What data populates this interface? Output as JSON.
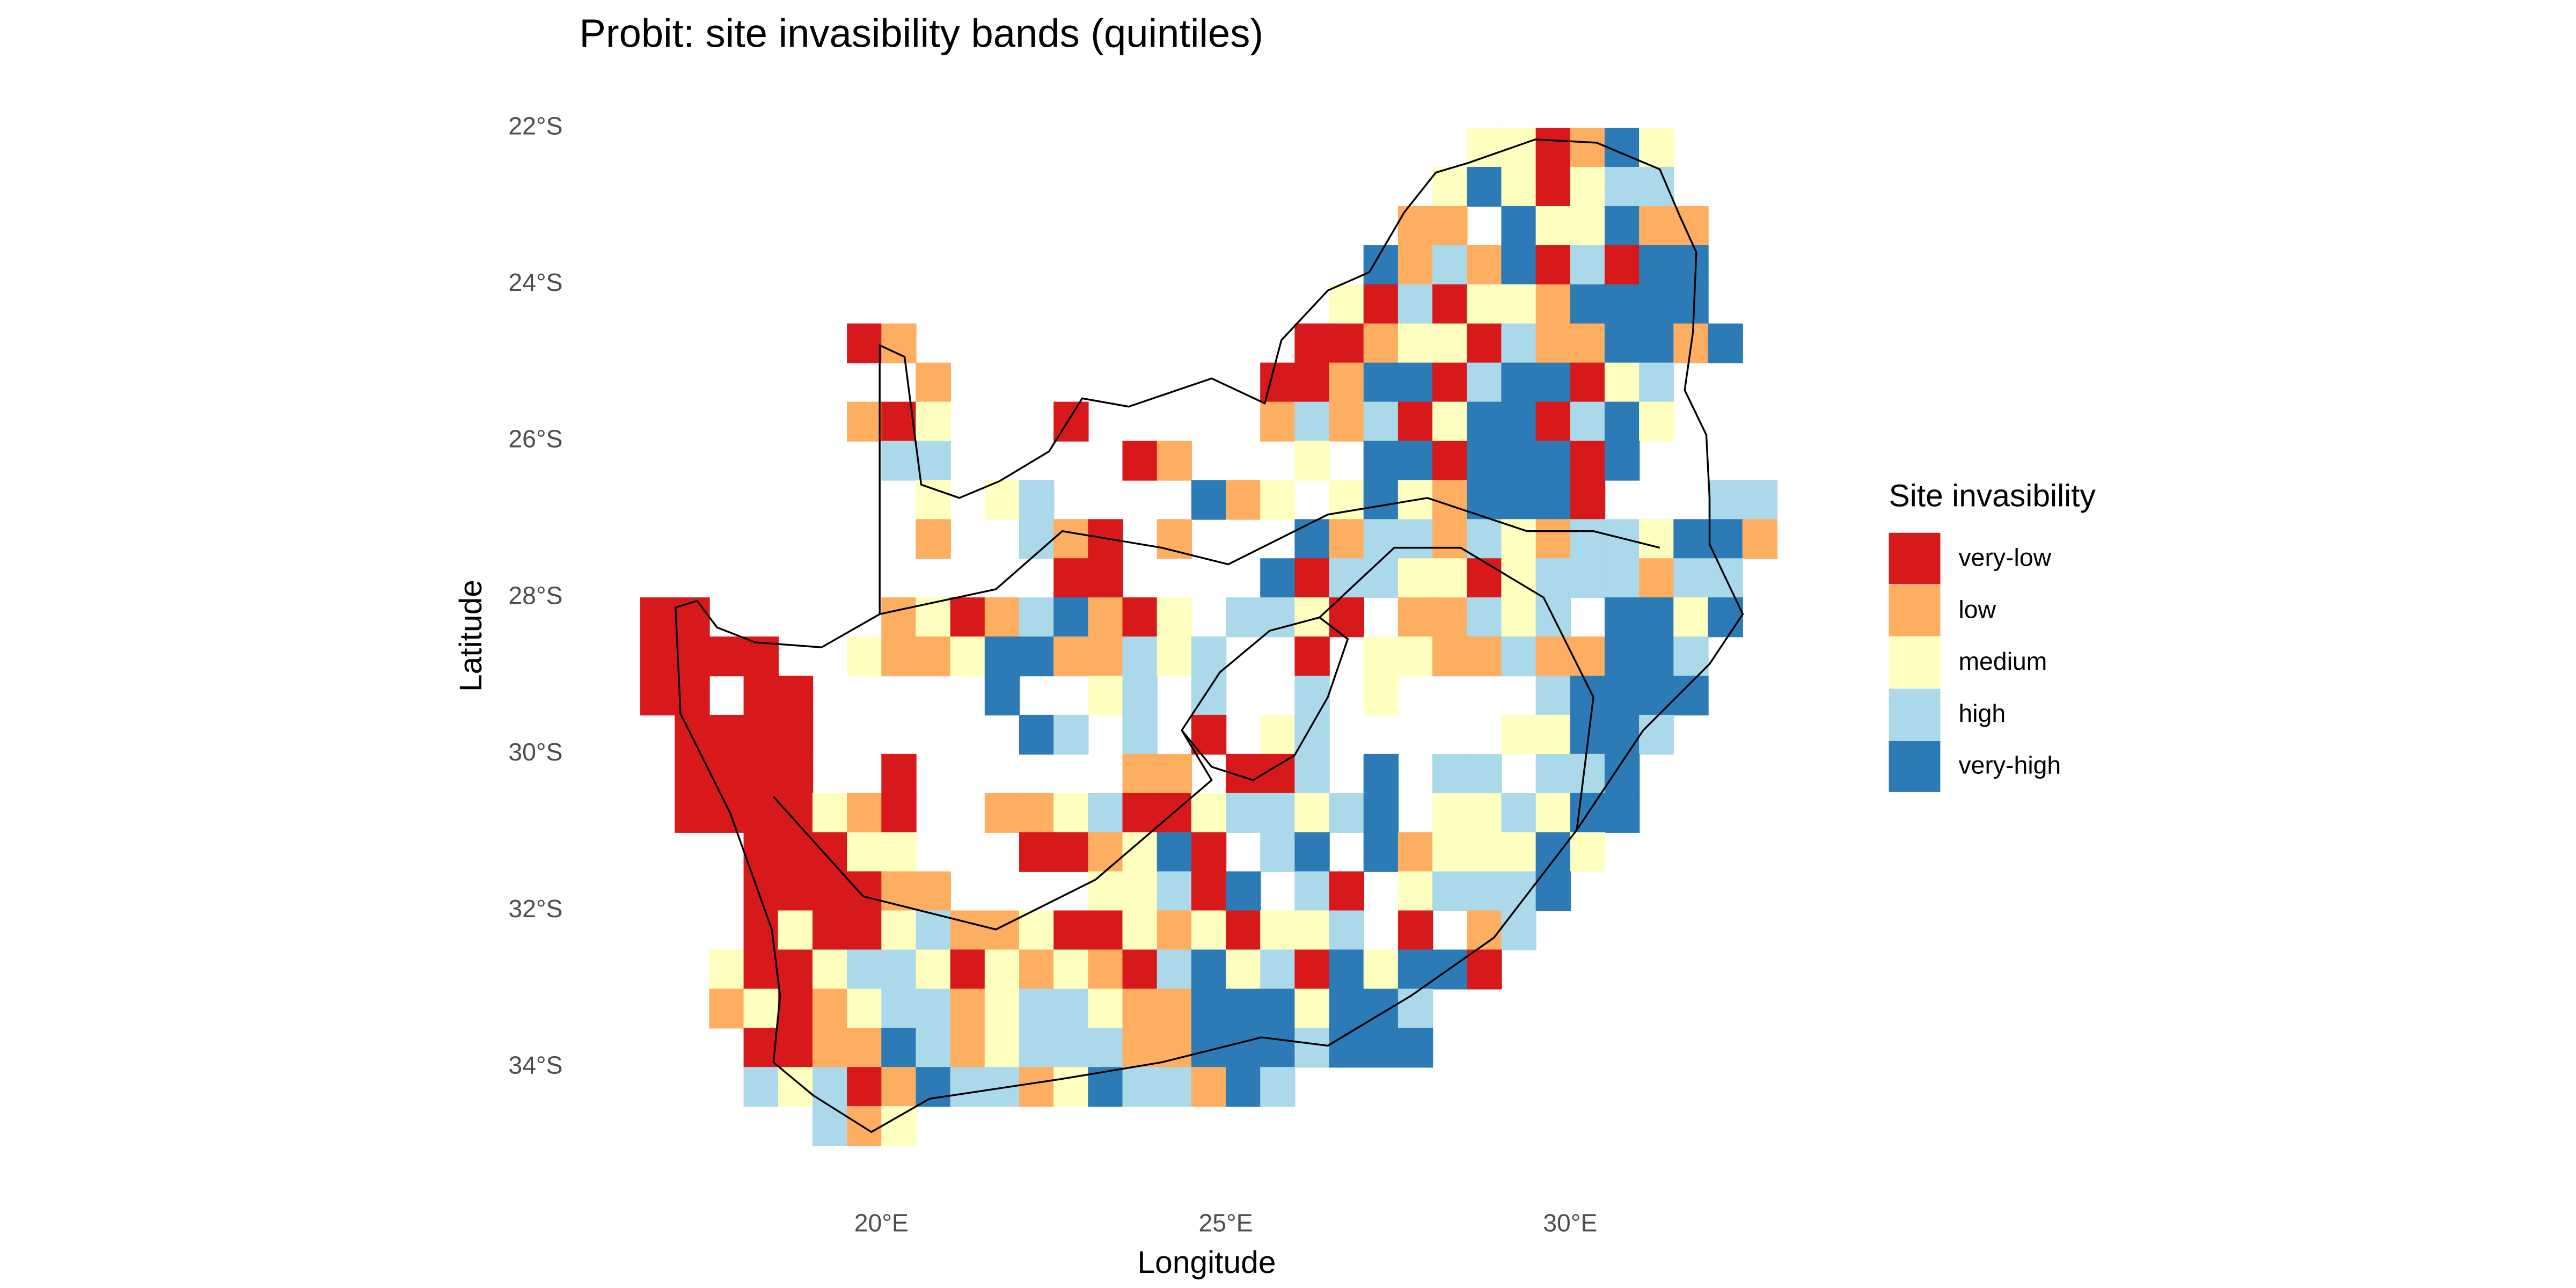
{
  "title": "Probit: site invasibility bands (quintiles)",
  "x_label": "Longitude",
  "y_label": "Latitude",
  "xlim": [
    16.5,
    33
  ],
  "ylim": [
    -35,
    -22
  ],
  "xticks": [
    {
      "value": 20,
      "label": "20°E"
    },
    {
      "value": 25,
      "label": "25°E"
    },
    {
      "value": 30,
      "label": "30°E"
    }
  ],
  "yticks": [
    {
      "value": -22,
      "label": "22°S"
    },
    {
      "value": -24,
      "label": "24°S"
    },
    {
      "value": -26,
      "label": "26°S"
    },
    {
      "value": -28,
      "label": "28°S"
    },
    {
      "value": -30,
      "label": "30°S"
    },
    {
      "value": -32,
      "label": "32°S"
    },
    {
      "value": -34,
      "label": "34°S"
    }
  ],
  "legend": {
    "title": "Site invasibility",
    "labels": [
      "very-low",
      "low",
      "medium",
      "high",
      "very-high"
    ],
    "colors": [
      "#d7191c",
      "#fdae61",
      "#ffffbf",
      "#abd9e9",
      "#2c7bb6"
    ]
  },
  "cells": [
    [
      null,
      null,
      null,
      null,
      null,
      null,
      null,
      null,
      null,
      null,
      null,
      null,
      null,
      null,
      null,
      null,
      null,
      null,
      null,
      null,
      null,
      null,
      null,
      null,
      2,
      2,
      0,
      1,
      4,
      2,
      null,
      null,
      null
    ],
    [
      null,
      null,
      null,
      null,
      null,
      null,
      null,
      null,
      null,
      null,
      null,
      null,
      null,
      null,
      null,
      null,
      null,
      null,
      null,
      null,
      null,
      null,
      null,
      2,
      4,
      2,
      0,
      2,
      3,
      3,
      null,
      null,
      null
    ],
    [
      null,
      null,
      null,
      null,
      null,
      null,
      null,
      null,
      null,
      null,
      null,
      null,
      null,
      null,
      null,
      null,
      null,
      null,
      null,
      null,
      null,
      null,
      1,
      1,
      null,
      4,
      2,
      2,
      4,
      1,
      1,
      null,
      null
    ],
    [
      null,
      null,
      null,
      null,
      null,
      null,
      null,
      null,
      null,
      null,
      null,
      null,
      null,
      null,
      null,
      null,
      null,
      null,
      null,
      null,
      null,
      4,
      1,
      3,
      1,
      4,
      0,
      3,
      0,
      4,
      4,
      null,
      null
    ],
    [
      null,
      null,
      null,
      null,
      null,
      null,
      null,
      null,
      null,
      null,
      null,
      null,
      null,
      null,
      null,
      null,
      null,
      null,
      null,
      null,
      2,
      0,
      3,
      0,
      2,
      2,
      1,
      4,
      4,
      4,
      4,
      null,
      null
    ],
    [
      null,
      null,
      null,
      null,
      null,
      null,
      0,
      1,
      null,
      null,
      null,
      null,
      null,
      null,
      null,
      null,
      null,
      null,
      null,
      0,
      0,
      1,
      2,
      2,
      0,
      3,
      1,
      1,
      4,
      4,
      1,
      4,
      null
    ],
    [
      null,
      null,
      null,
      null,
      null,
      null,
      null,
      null,
      1,
      null,
      null,
      null,
      null,
      null,
      null,
      null,
      null,
      null,
      0,
      0,
      1,
      4,
      4,
      0,
      3,
      4,
      4,
      0,
      2,
      3,
      null,
      null,
      null
    ],
    [
      null,
      null,
      null,
      null,
      null,
      null,
      1,
      0,
      2,
      null,
      null,
      null,
      0,
      null,
      null,
      null,
      null,
      null,
      1,
      3,
      1,
      3,
      0,
      2,
      4,
      4,
      0,
      3,
      4,
      2,
      null,
      null,
      null
    ],
    [
      null,
      null,
      null,
      null,
      null,
      null,
      null,
      3,
      3,
      null,
      null,
      null,
      null,
      null,
      0,
      1,
      null,
      null,
      null,
      2,
      null,
      4,
      4,
      0,
      4,
      4,
      4,
      0,
      4,
      null,
      null,
      null,
      null
    ],
    [
      null,
      null,
      null,
      null,
      null,
      null,
      null,
      null,
      2,
      null,
      2,
      3,
      null,
      null,
      null,
      null,
      4,
      1,
      2,
      null,
      2,
      4,
      2,
      1,
      4,
      4,
      4,
      0,
      null,
      null,
      null,
      3,
      3
    ],
    [
      null,
      null,
      null,
      null,
      null,
      null,
      null,
      null,
      1,
      null,
      null,
      3,
      1,
      0,
      null,
      1,
      null,
      null,
      null,
      4,
      1,
      3,
      3,
      1,
      3,
      2,
      1,
      3,
      3,
      2,
      4,
      4,
      1
    ],
    [
      null,
      null,
      null,
      null,
      null,
      null,
      null,
      null,
      null,
      null,
      null,
      null,
      0,
      0,
      null,
      null,
      null,
      null,
      4,
      0,
      3,
      3,
      2,
      2,
      0,
      2,
      3,
      3,
      3,
      1,
      3,
      3,
      null
    ],
    [
      0,
      0,
      null,
      null,
      null,
      null,
      null,
      1,
      2,
      0,
      1,
      3,
      4,
      1,
      0,
      2,
      null,
      3,
      3,
      2,
      0,
      null,
      1,
      1,
      3,
      2,
      3,
      null,
      4,
      4,
      2,
      4,
      null
    ],
    [
      0,
      0,
      0,
      0,
      null,
      null,
      2,
      1,
      1,
      2,
      4,
      4,
      1,
      1,
      3,
      2,
      3,
      null,
      null,
      0,
      null,
      2,
      2,
      1,
      1,
      3,
      1,
      1,
      4,
      4,
      3,
      null,
      null
    ],
    [
      0,
      0,
      null,
      0,
      0,
      null,
      null,
      null,
      null,
      null,
      4,
      null,
      null,
      2,
      3,
      null,
      3,
      null,
      null,
      3,
      null,
      2,
      null,
      null,
      null,
      null,
      3,
      4,
      4,
      4,
      4,
      null,
      null
    ],
    [
      null,
      0,
      0,
      0,
      0,
      null,
      null,
      null,
      null,
      null,
      null,
      4,
      3,
      null,
      3,
      null,
      0,
      null,
      2,
      3,
      null,
      null,
      null,
      null,
      null,
      2,
      2,
      4,
      4,
      3,
      null,
      null,
      null
    ],
    [
      null,
      0,
      0,
      0,
      0,
      null,
      null,
      0,
      null,
      null,
      null,
      null,
      null,
      null,
      1,
      1,
      null,
      0,
      0,
      3,
      null,
      4,
      null,
      3,
      3,
      null,
      3,
      3,
      4,
      null,
      null,
      null,
      null
    ],
    [
      null,
      0,
      0,
      0,
      0,
      2,
      1,
      0,
      null,
      null,
      1,
      1,
      2,
      3,
      0,
      0,
      2,
      3,
      3,
      2,
      3,
      4,
      null,
      2,
      2,
      3,
      2,
      4,
      4,
      null,
      null,
      null,
      null
    ],
    [
      null,
      null,
      null,
      0,
      0,
      0,
      2,
      2,
      null,
      null,
      null,
      0,
      0,
      1,
      2,
      4,
      0,
      null,
      3,
      4,
      null,
      4,
      1,
      2,
      2,
      2,
      4,
      2,
      null,
      null,
      null,
      null,
      null
    ],
    [
      null,
      null,
      null,
      0,
      0,
      0,
      0,
      1,
      1,
      null,
      null,
      null,
      null,
      2,
      2,
      3,
      0,
      4,
      null,
      3,
      0,
      null,
      2,
      3,
      3,
      3,
      4,
      null,
      null,
      null,
      null,
      null,
      null
    ],
    [
      null,
      null,
      null,
      0,
      2,
      0,
      0,
      2,
      3,
      1,
      1,
      2,
      0,
      0,
      2,
      1,
      2,
      0,
      2,
      2,
      3,
      null,
      0,
      null,
      1,
      3,
      null,
      null,
      null,
      null,
      null,
      null,
      null
    ],
    [
      null,
      null,
      2,
      0,
      0,
      2,
      3,
      3,
      2,
      0,
      2,
      1,
      2,
      1,
      0,
      3,
      4,
      2,
      3,
      0,
      4,
      2,
      4,
      4,
      0,
      null,
      null,
      null,
      null,
      null,
      null,
      null,
      null
    ],
    [
      null,
      null,
      1,
      2,
      0,
      1,
      2,
      3,
      3,
      1,
      2,
      3,
      3,
      2,
      1,
      1,
      4,
      4,
      4,
      2,
      4,
      4,
      3,
      null,
      null,
      null,
      null,
      null,
      null,
      null,
      null,
      null,
      null
    ],
    [
      null,
      null,
      null,
      0,
      0,
      1,
      1,
      4,
      3,
      1,
      2,
      3,
      3,
      3,
      1,
      1,
      4,
      4,
      4,
      3,
      4,
      4,
      4,
      null,
      null,
      null,
      null,
      null,
      null,
      null,
      null,
      null,
      null
    ],
    [
      null,
      null,
      null,
      3,
      2,
      3,
      0,
      1,
      4,
      3,
      3,
      1,
      2,
      4,
      3,
      3,
      1,
      4,
      3,
      null,
      null,
      null,
      null,
      null,
      null,
      null,
      null,
      null,
      null,
      null,
      null,
      null,
      null
    ],
    [
      null,
      null,
      null,
      null,
      null,
      3,
      1,
      2,
      null,
      null,
      null,
      null,
      null,
      null,
      null,
      null,
      null,
      null,
      null,
      null,
      null,
      null,
      null,
      null,
      null,
      null,
      null,
      null,
      null,
      null,
      null,
      null,
      null
    ]
  ]
}
